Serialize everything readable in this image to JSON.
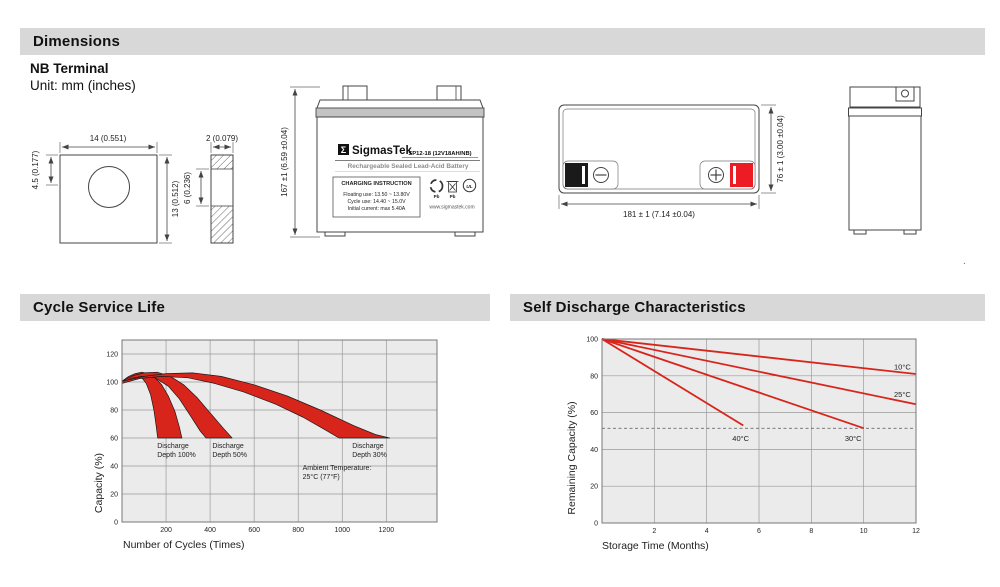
{
  "header": {
    "dimensions_title": "Dimensions",
    "terminal_type": "NB Terminal",
    "unit_note": "Unit: mm (inches)"
  },
  "section_titles": {
    "cycle": "Cycle Service Life",
    "self_discharge": "Self Discharge Characteristics"
  },
  "colors": {
    "accent_red": "#d8251c",
    "terminal_red": "#ed1c24",
    "terminal_black": "#1a1a1a",
    "section_bar": "#d8d8d8",
    "chart_bg": "#ebebeb",
    "gridline": "#9a9a9a"
  },
  "terminal_drawing": {
    "width": "14 (0.551)",
    "hole_offset": "4.5 (0.177)",
    "height": "13 (0.512)",
    "thickness": "2 (0.079)",
    "mid_thickness": "6 (0.236)"
  },
  "front_view": {
    "height_dim": "167 ±1 (6.59 ±0.04)"
  },
  "top_view": {
    "width_dim": "181 ± 1 (7.14 ±0.04)",
    "depth_dim": "76 ± 1 (3.00 ±0.04)"
  },
  "battery_label": {
    "logo_glyph": "Σ",
    "brand": "SigmasTek",
    "model": "SP12-18 (12V18AH/NB)",
    "type_line": "Rechargeable Sealed Lead-Acid Battery",
    "charging_title": "CHARGING INSTRUCTION",
    "charging_line1": "Floating use: 13.50 ~ 13.80V",
    "charging_line2": "Cycle use: 14.40 ~ 15.0V",
    "charging_line3": "Initial current: max 5.40A",
    "website": "www.sigmastek.com",
    "pb_recycle": "Pb",
    "pb_trash": "Pb",
    "ul_mark": "UL"
  },
  "misc": {
    "stray_dot": "."
  },
  "chart_data": [
    {
      "id": "cycle_service_life",
      "type": "area",
      "title": "Cycle Service Life",
      "xlabel": "Number of Cycles (Times)",
      "ylabel": "Capacity (%)",
      "xlim": [
        0,
        1430
      ],
      "ylim": [
        0,
        130
      ],
      "xticks": [
        200,
        400,
        600,
        800,
        1000,
        1200
      ],
      "yticks": [
        0,
        20,
        40,
        60,
        80,
        100,
        120
      ],
      "grid": true,
      "legend": "none",
      "bands": [
        {
          "name": "Discharge Depth 100%",
          "upper": [
            [
              0,
              100.5
            ],
            [
              30,
              104
            ],
            [
              60,
              106
            ],
            [
              90,
              107
            ],
            [
              120,
              106
            ],
            [
              150,
              103
            ],
            [
              180,
              98
            ],
            [
              210,
              90
            ],
            [
              240,
              79
            ],
            [
              260,
              68
            ],
            [
              272,
              60
            ]
          ],
          "lower": [
            [
              0,
              99
            ],
            [
              30,
              102
            ],
            [
              60,
              103.5
            ],
            [
              90,
              103
            ],
            [
              110,
              99
            ],
            [
              130,
              91
            ],
            [
              145,
              80
            ],
            [
              155,
              69
            ],
            [
              162,
              60
            ]
          ]
        },
        {
          "name": "Discharge Depth 50%",
          "upper": [
            [
              0,
              100.5
            ],
            [
              50,
              104.5
            ],
            [
              100,
              106.5
            ],
            [
              160,
              107
            ],
            [
              220,
              104
            ],
            [
              280,
              98
            ],
            [
              340,
              89
            ],
            [
              400,
              78
            ],
            [
              460,
              67
            ],
            [
              500,
              60
            ]
          ],
          "lower": [
            [
              0,
              99
            ],
            [
              40,
              102.5
            ],
            [
              90,
              104
            ],
            [
              150,
              103
            ],
            [
              210,
              97
            ],
            [
              260,
              88
            ],
            [
              310,
              76
            ],
            [
              355,
              65
            ],
            [
              382,
              60
            ]
          ]
        },
        {
          "name": "Discharge Depth 30%",
          "upper": [
            [
              0,
              100.5
            ],
            [
              100,
              104
            ],
            [
              200,
              106
            ],
            [
              320,
              106.5
            ],
            [
              450,
              104
            ],
            [
              600,
              98
            ],
            [
              750,
              90
            ],
            [
              900,
              80
            ],
            [
              1050,
              69
            ],
            [
              1150,
              62.5
            ],
            [
              1215,
              60
            ]
          ],
          "lower": [
            [
              0,
              99
            ],
            [
              80,
              102.5
            ],
            [
              180,
              104
            ],
            [
              300,
              103
            ],
            [
              420,
              99
            ],
            [
              550,
              93
            ],
            [
              700,
              84
            ],
            [
              820,
              75
            ],
            [
              920,
              66
            ],
            [
              985,
              60
            ]
          ]
        }
      ],
      "annotations": [
        {
          "lines": [
            "Discharge",
            "Depth 100%"
          ],
          "x": 160,
          "y": 53
        },
        {
          "lines": [
            "Discharge",
            "Depth 50%"
          ],
          "x": 410,
          "y": 53
        },
        {
          "lines": [
            "Discharge",
            "Depth 30%"
          ],
          "x": 1045,
          "y": 53
        },
        {
          "lines": [
            "Ambient Temperature:",
            "25°C (77°F)"
          ],
          "x": 820,
          "y": 37
        }
      ]
    },
    {
      "id": "self_discharge",
      "type": "line",
      "title": "Self Discharge Characteristics",
      "xlabel": "Storage Time (Months)",
      "ylabel": "Remaining Capacity (%)",
      "xlim": [
        0,
        12
      ],
      "ylim": [
        0,
        100
      ],
      "xticks": [
        2,
        4,
        6,
        8,
        10,
        12
      ],
      "yticks": [
        0,
        20,
        40,
        60,
        80,
        100
      ],
      "grid": true,
      "dashed_y": 51.5,
      "series": [
        {
          "name": "10°C",
          "points": [
            [
              0,
              100
            ],
            [
              12,
              81
            ]
          ]
        },
        {
          "name": "25°C",
          "points": [
            [
              0,
              100
            ],
            [
              12,
              64.5
            ]
          ]
        },
        {
          "name": "30°C",
          "points": [
            [
              0,
              100
            ],
            [
              10,
              51.5
            ]
          ]
        },
        {
          "name": "40°C",
          "points": [
            [
              0,
              100
            ],
            [
              5.4,
              53
            ]
          ]
        }
      ],
      "labels": [
        {
          "text": "10°C",
          "x": 11.8,
          "y": 83.5,
          "anchor": "end"
        },
        {
          "text": "25°C",
          "x": 11.8,
          "y": 68.5,
          "anchor": "end"
        },
        {
          "text": "40°C",
          "x": 5.3,
          "y": 44.5,
          "anchor": "middle"
        },
        {
          "text": "30°C",
          "x": 9.6,
          "y": 44.5,
          "anchor": "middle"
        }
      ]
    }
  ]
}
